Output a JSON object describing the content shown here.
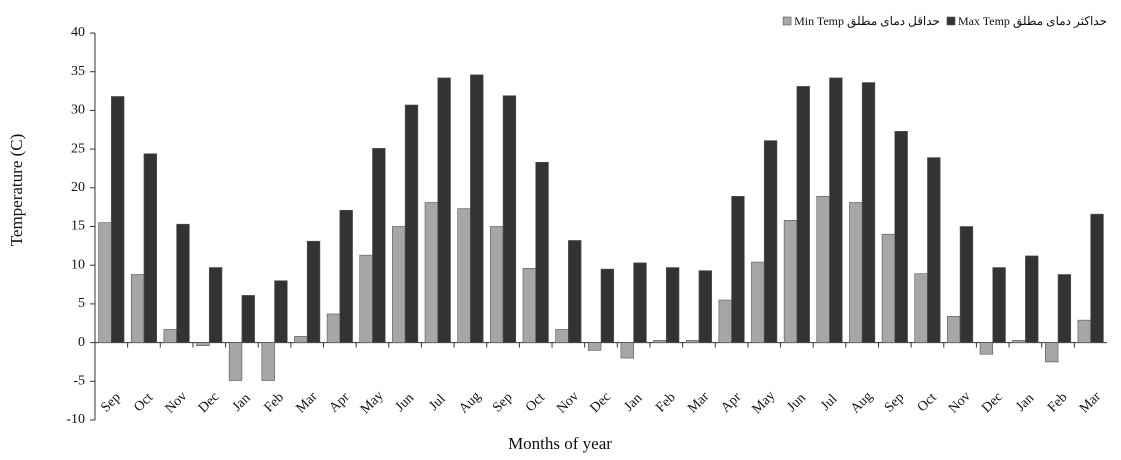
{
  "chart_data": {
    "type": "bar",
    "x_label": "Months of year",
    "y_label": "Temperature (C)",
    "categories": [
      "Sep",
      "Oct",
      "Nov",
      "Dec",
      "Jan",
      "Feb",
      "Mar",
      "Apr",
      "May",
      "Jun",
      "Jul",
      "Aug",
      "Sep",
      "Oct",
      "Nov",
      "Dec",
      "Jan",
      "Feb",
      "Mar",
      "Apr",
      "May",
      "Jun",
      "Jul",
      "Aug",
      "Sep",
      "Oct",
      "Nov",
      "Dec",
      "Jan",
      "Feb",
      "Mar"
    ],
    "series": [
      {
        "name": "Min Temp حداقل دمای مطلق",
        "color": "#a6a6a6",
        "values": [
          15.5,
          8.8,
          1.7,
          -0.4,
          -4.9,
          -4.9,
          0.8,
          3.7,
          11.3,
          15,
          18.1,
          17.3,
          15,
          9.6,
          1.7,
          -1,
          -2,
          0.3,
          0.3,
          5.5,
          10.4,
          15.8,
          18.9,
          18.1,
          14,
          8.9,
          3.4,
          -1.5,
          0.3,
          -2.5,
          2.9
        ]
      },
      {
        "name": "Max Temp حداکثر دمای مطلق",
        "color": "#333333",
        "values": [
          31.8,
          24.4,
          15.3,
          9.7,
          6.1,
          8,
          13.1,
          17.1,
          25.1,
          30.7,
          34.2,
          34.6,
          31.9,
          23.3,
          13.2,
          9.5,
          10.3,
          9.7,
          9.3,
          18.9,
          26.1,
          33.1,
          34.2,
          33.6,
          27.3,
          23.9,
          15,
          9.7,
          11.2,
          8.8,
          16.6
        ]
      }
    ],
    "ylim": [
      -10,
      40
    ],
    "yticks": [
      -10,
      -5,
      0,
      5,
      10,
      15,
      20,
      25,
      30,
      35,
      40
    ],
    "legend": "top-right"
  }
}
